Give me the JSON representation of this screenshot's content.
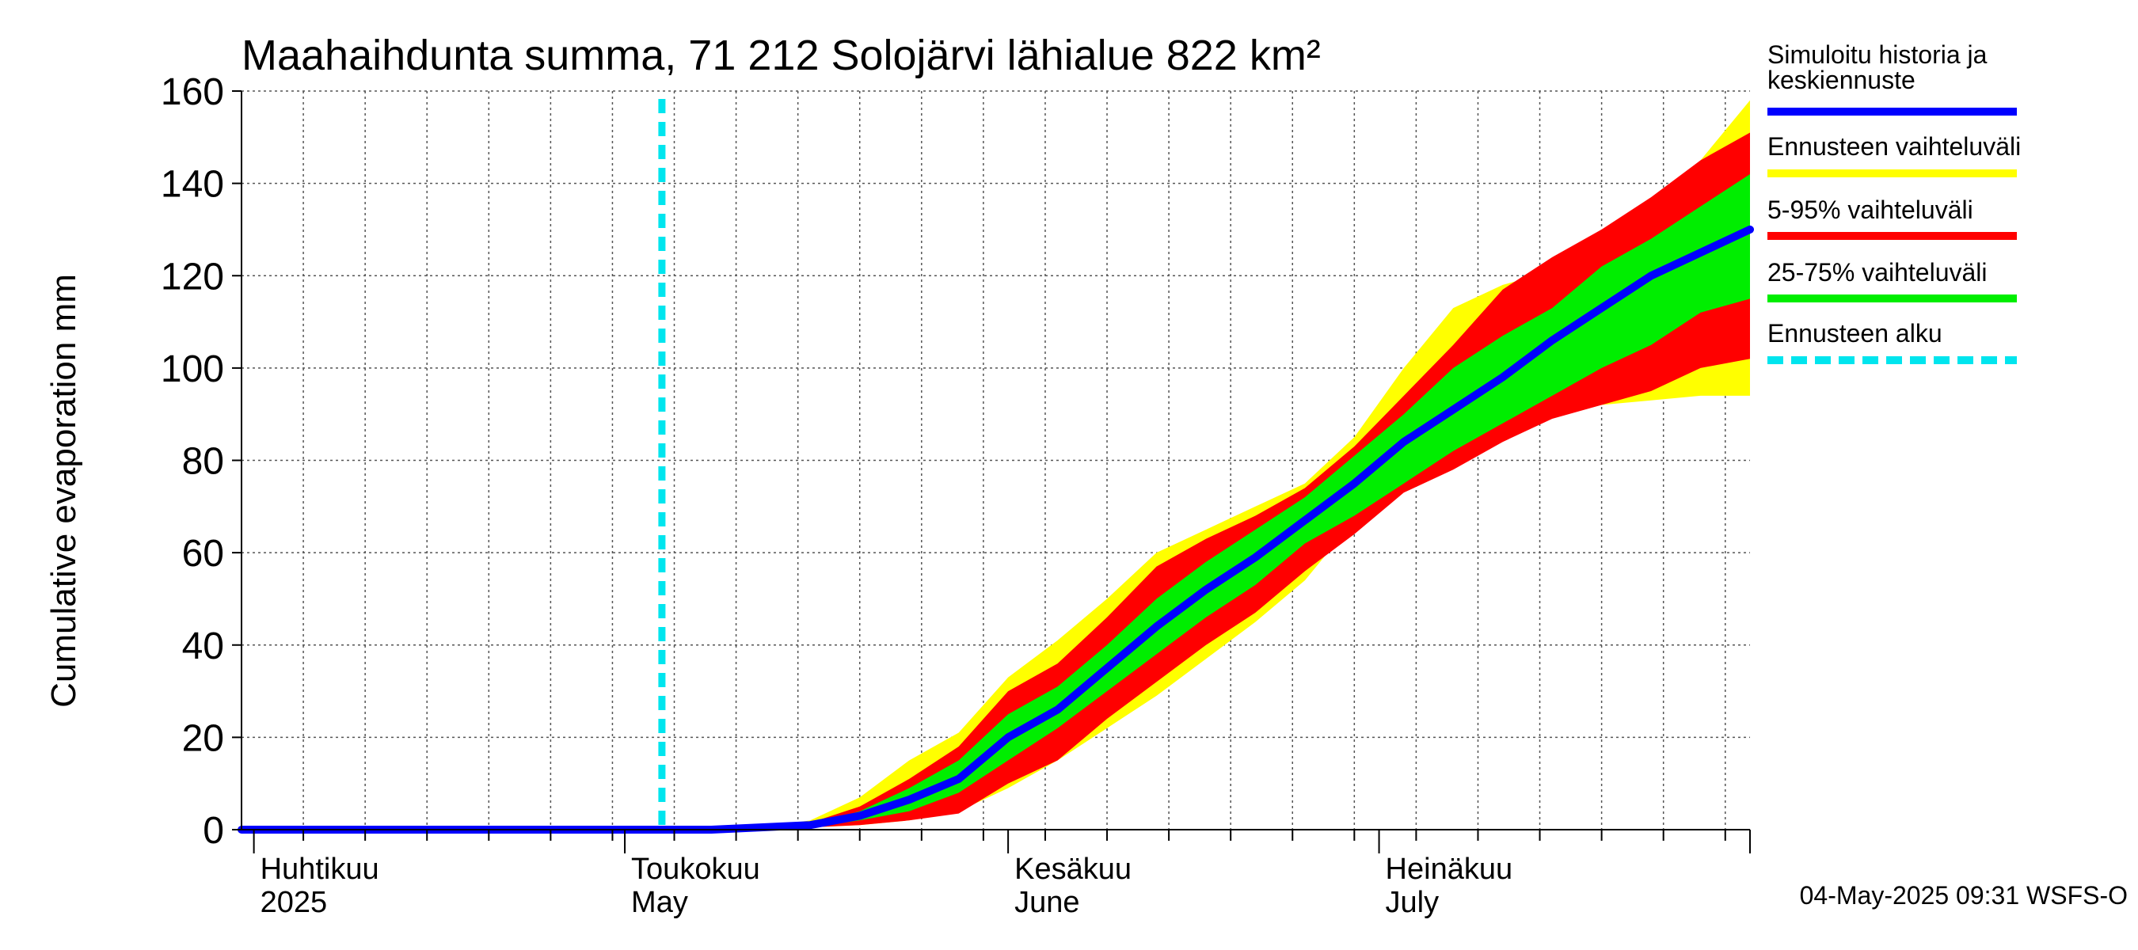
{
  "chart_data": {
    "type": "area",
    "title": "Maahaihdunta summa, 71 212 Solojärvi lähialue 822 km²",
    "ylabel": "Cumulative evaporation   mm",
    "ylim": [
      0,
      160
    ],
    "yticks": [
      0,
      20,
      40,
      60,
      80,
      100,
      120,
      140,
      160
    ],
    "xlim": [
      "2025-03-31",
      "2025-07-31"
    ],
    "grid": true,
    "legend_position": "right",
    "months": [
      {
        "date": "2025-04-01",
        "fi": "Huhtikuu",
        "en": "2025"
      },
      {
        "date": "2025-05-01",
        "fi": "Toukokuu",
        "en": "May"
      },
      {
        "date": "2025-06-01",
        "fi": "Kesäkuu",
        "en": "June"
      },
      {
        "date": "2025-07-01",
        "fi": "Heinäkuu",
        "en": "July"
      }
    ],
    "forecast_start": "2025-05-04",
    "x": [
      "2025-03-31",
      "2025-04-05",
      "2025-04-10",
      "2025-04-15",
      "2025-04-20",
      "2025-04-25",
      "2025-04-30",
      "2025-05-04",
      "2025-05-08",
      "2025-05-12",
      "2025-05-16",
      "2025-05-20",
      "2025-05-24",
      "2025-05-28",
      "2025-06-01",
      "2025-06-05",
      "2025-06-09",
      "2025-06-13",
      "2025-06-17",
      "2025-06-21",
      "2025-06-25",
      "2025-06-29",
      "2025-07-03",
      "2025-07-07",
      "2025-07-11",
      "2025-07-15",
      "2025-07-19",
      "2025-07-23",
      "2025-07-27",
      "2025-07-31"
    ],
    "series": [
      {
        "name": "Ennusteen vaihteluväli",
        "color": "#ffff00",
        "lower": [
          0,
          0,
          0,
          0,
          0,
          0,
          0,
          0,
          0,
          0,
          0.5,
          1,
          2,
          4,
          9,
          15,
          22,
          29,
          37,
          45,
          54,
          67,
          77,
          82,
          86,
          90,
          92,
          93,
          94,
          94
        ],
        "upper": [
          0,
          0,
          0,
          0,
          0,
          0,
          0,
          0,
          0,
          0.5,
          2,
          7,
          15,
          21,
          33,
          41,
          50,
          60,
          65,
          70,
          75,
          85,
          100,
          113,
          118,
          121,
          125,
          133,
          145,
          158
        ]
      },
      {
        "name": "5-95% vaihteluväli",
        "color": "#ff0000",
        "lower": [
          0,
          0,
          0,
          0,
          0,
          0,
          0,
          0,
          0,
          0,
          0.5,
          1,
          2,
          3.5,
          10,
          15,
          24,
          32,
          40,
          47,
          56,
          64,
          73,
          78,
          84,
          89,
          92,
          95,
          100,
          102
        ],
        "upper": [
          0,
          0,
          0,
          0,
          0,
          0,
          0,
          0,
          0,
          0.5,
          1.5,
          5,
          11,
          18,
          30,
          36,
          46,
          57,
          63,
          68,
          74,
          83,
          94,
          105,
          117,
          124,
          130,
          137,
          145,
          151
        ]
      },
      {
        "name": "25-75% vaihteluväli",
        "color": "#00ee00",
        "lower": [
          0,
          0,
          0,
          0,
          0,
          0,
          0,
          0,
          0,
          0,
          0.5,
          2,
          4,
          8,
          15,
          22,
          30,
          38,
          46,
          53,
          62,
          68,
          75,
          82,
          88,
          94,
          100,
          105,
          112,
          115
        ],
        "upper": [
          0,
          0,
          0,
          0,
          0,
          0,
          0,
          0,
          0,
          0.5,
          1,
          4,
          9,
          15,
          25,
          31,
          40,
          50,
          58,
          65,
          72,
          81,
          90,
          100,
          107,
          113,
          122,
          128,
          135,
          142
        ]
      },
      {
        "name": "Simuloitu historia ja keskiennuste",
        "color": "#0000ff",
        "values": [
          0,
          0,
          0,
          0,
          0,
          0,
          0,
          0,
          0,
          0.5,
          1,
          3,
          6.5,
          11,
          20,
          26,
          35,
          44,
          52,
          59,
          67,
          75,
          84,
          91,
          98,
          106,
          113,
          120,
          125,
          130
        ]
      }
    ],
    "forecast_start_label": "Ennusteen alku",
    "legend": [
      {
        "label_lines": [
          "Simuloitu historia ja",
          "keskiennuste"
        ],
        "color": "#0000ff",
        "style": "solid"
      },
      {
        "label_lines": [
          "Ennusteen vaihteluväli"
        ],
        "color": "#ffff00",
        "style": "solid"
      },
      {
        "label_lines": [
          "5-95% vaihteluväli"
        ],
        "color": "#ff0000",
        "style": "solid"
      },
      {
        "label_lines": [
          "25-75% vaihteluväli"
        ],
        "color": "#00ee00",
        "style": "solid"
      },
      {
        "label_lines": [
          "Ennusteen alku"
        ],
        "color": "#00e5ee",
        "style": "dashed"
      }
    ],
    "footer": "04-May-2025 09:31 WSFS-O"
  }
}
